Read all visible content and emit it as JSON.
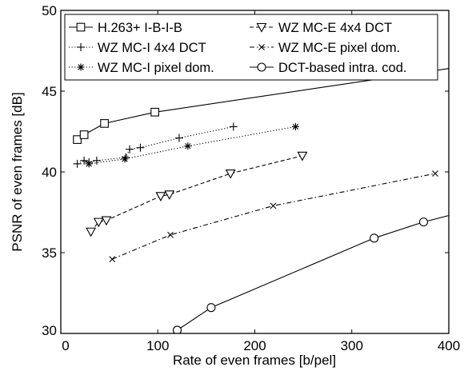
{
  "chart_data": {
    "type": "line",
    "title": "",
    "xlabel": "Rate of even frames [b/pel]",
    "ylabel": "PSNR of even frames [dB]",
    "xlim": [
      0,
      400
    ],
    "ylim": [
      30,
      50
    ],
    "xticks": [
      0,
      100,
      200,
      300,
      400
    ],
    "yticks": [
      30,
      35,
      40,
      45,
      50
    ],
    "grid": false,
    "legend_position": "top",
    "series": [
      {
        "name": "H.263+ I-B-I-B",
        "marker": "square",
        "linestyle": "solid",
        "x": [
          17,
          24,
          45,
          97,
          400
        ],
        "y": [
          42.0,
          42.3,
          43.0,
          43.7,
          46.4
        ]
      },
      {
        "name": "WZ MC-I 4x4 DCT",
        "marker": "plus",
        "linestyle": "dotted",
        "x": [
          17,
          24,
          29,
          37,
          67,
          71,
          82,
          122,
          178
        ],
        "y": [
          40.5,
          40.7,
          40.6,
          40.7,
          40.9,
          41.4,
          41.5,
          42.1,
          42.8
        ]
      },
      {
        "name": "WZ MC-I pixel dom.",
        "marker": "asterisk",
        "linestyle": "dotted",
        "x": [
          29,
          66,
          131,
          242
        ],
        "y": [
          40.5,
          40.8,
          41.6,
          42.8
        ]
      },
      {
        "name": "WZ MC-E 4x4 DCT",
        "marker": "triangle-down",
        "linestyle": "dashed",
        "x": [
          31,
          39,
          47,
          103,
          112,
          175,
          249
        ],
        "y": [
          36.3,
          36.9,
          37.0,
          38.5,
          38.6,
          39.9,
          41.0
        ]
      },
      {
        "name": "WZ MC-E pixel dom.",
        "marker": "x",
        "linestyle": "dashdot",
        "x": [
          53,
          113,
          219,
          386
        ],
        "y": [
          34.6,
          36.1,
          37.9,
          39.9
        ]
      },
      {
        "name": "DCT-based intra. cod.",
        "marker": "circle",
        "linestyle": "solid",
        "x": [
          120,
          155,
          323,
          374,
          400
        ],
        "y": [
          30.2,
          31.6,
          35.9,
          36.9,
          37.3
        ]
      }
    ]
  }
}
